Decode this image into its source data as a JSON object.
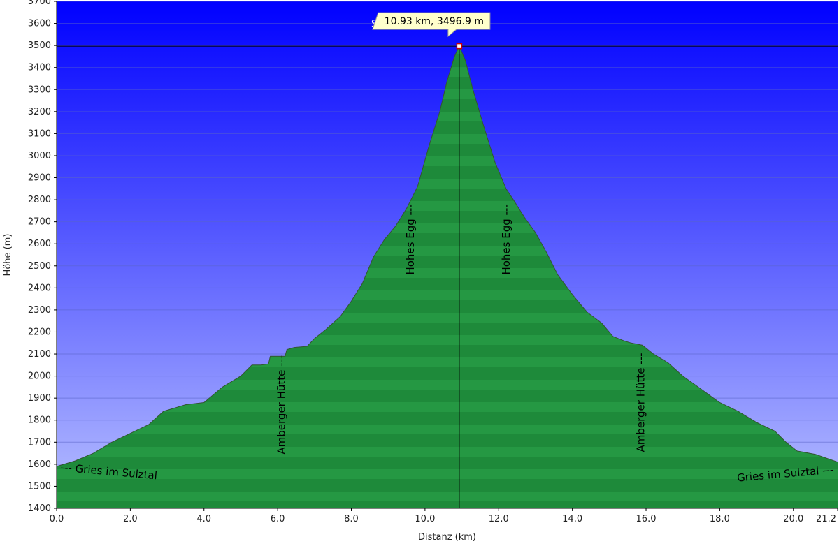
{
  "chart_data": {
    "type": "area",
    "title": "",
    "xlabel": "Distanz  (km)",
    "ylabel": "Höhe (m)",
    "xlim": [
      0,
      21.2
    ],
    "ylim": [
      1400,
      3700
    ],
    "x_ticks": [
      0,
      2,
      4,
      6,
      8,
      10,
      12,
      14,
      16,
      18,
      20,
      21.2
    ],
    "x_tick_labels": [
      "0.0",
      "2.0",
      "4.0",
      "6.0",
      "8.0",
      "10.0",
      "12.0",
      "14.0",
      "16.0",
      "18.0",
      "20.0",
      "21.2"
    ],
    "y_ticks": [
      1400,
      1500,
      1600,
      1700,
      1800,
      1900,
      2000,
      2100,
      2200,
      2300,
      2400,
      2500,
      2600,
      2700,
      2800,
      2900,
      3000,
      3100,
      3200,
      3300,
      3400,
      3500,
      3600,
      3700
    ],
    "grid": true,
    "colors": {
      "sky_top": "#0000ff",
      "sky_bottom": "#b8c0ff",
      "fill": "#2aa34a",
      "fill_band": "#1e8a3a"
    },
    "series": [
      {
        "x": [
          0,
          0.5,
          1.0,
          1.5,
          2.0,
          2.5,
          2.9,
          3.5,
          4.0,
          4.5,
          5.0,
          5.3,
          5.55,
          5.75,
          5.8,
          6.2,
          6.25,
          6.45,
          6.8,
          7.0,
          7.3,
          7.7,
          8.0,
          8.3,
          8.6,
          8.9,
          9.2,
          9.5,
          9.8,
          10.1,
          10.4,
          10.6,
          10.8,
          10.93,
          11.1,
          11.3,
          11.6,
          11.9,
          12.2,
          12.4,
          12.7,
          13.0,
          13.3,
          13.6,
          14.0,
          14.4,
          14.8,
          15.1,
          15.4,
          15.6,
          15.9,
          16.2,
          16.6,
          17.0,
          17.5,
          18.0,
          18.5,
          19.0,
          19.5,
          19.8,
          20.1,
          20.6,
          21.2
        ],
        "y": [
          1590,
          1615,
          1650,
          1700,
          1740,
          1780,
          1840,
          1870,
          1880,
          1950,
          2000,
          2050,
          2050,
          2055,
          2090,
          2090,
          2120,
          2130,
          2135,
          2170,
          2210,
          2270,
          2340,
          2420,
          2540,
          2620,
          2680,
          2760,
          2860,
          3040,
          3200,
          3340,
          3450,
          3497,
          3430,
          3300,
          3130,
          2970,
          2850,
          2800,
          2720,
          2650,
          2560,
          2460,
          2370,
          2290,
          2240,
          2180,
          2160,
          2150,
          2140,
          2100,
          2060,
          2000,
          1940,
          1880,
          1840,
          1790,
          1750,
          1700,
          1660,
          1645,
          1610
        ]
      }
    ],
    "annotations": [
      {
        "label": "Schrankogel",
        "tooltip": "10.93 km, 3496.9 m",
        "x": 10.93,
        "y": 3496.9
      },
      {
        "label": "--- Gries im Sulztal",
        "x": 0.1,
        "y": 1570,
        "rotation": 5
      },
      {
        "label": "Amberger Hütte ---",
        "x": 6.2,
        "y": 1870,
        "rotation": -90
      },
      {
        "label": "Hohes Egg ---",
        "x": 9.7,
        "y": 2620,
        "rotation": -90
      },
      {
        "label": "Hohes Egg ---",
        "x": 12.3,
        "y": 2620,
        "rotation": -90
      },
      {
        "label": "Amberger Hütte ---",
        "x": 15.95,
        "y": 1880,
        "rotation": -90
      },
      {
        "label": "Gries im Sulztal ---",
        "x": 21.1,
        "y": 1560,
        "rotation": -5
      }
    ]
  }
}
